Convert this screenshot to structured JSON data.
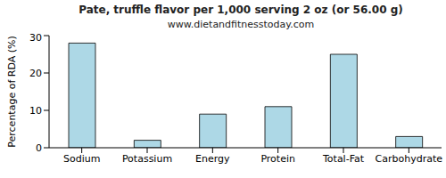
{
  "chart_data": {
    "type": "bar",
    "title": "Pate, truffle flavor per 1,000 serving 2 oz (or 56.00 g)",
    "subtitle": "www.dietandfitnesstoday.com",
    "y_label": "Percentage of RDA (%)",
    "categories": [
      "Sodium",
      "Potassium",
      "Energy",
      "Protein",
      "Total-Fat",
      "Carbohydrate"
    ],
    "values": [
      28,
      2,
      9,
      11,
      25,
      3
    ],
    "color": "#add8e6",
    "ylim": [
      0,
      30
    ],
    "yticks": [
      0,
      10,
      20,
      30
    ],
    "grid": false
  }
}
